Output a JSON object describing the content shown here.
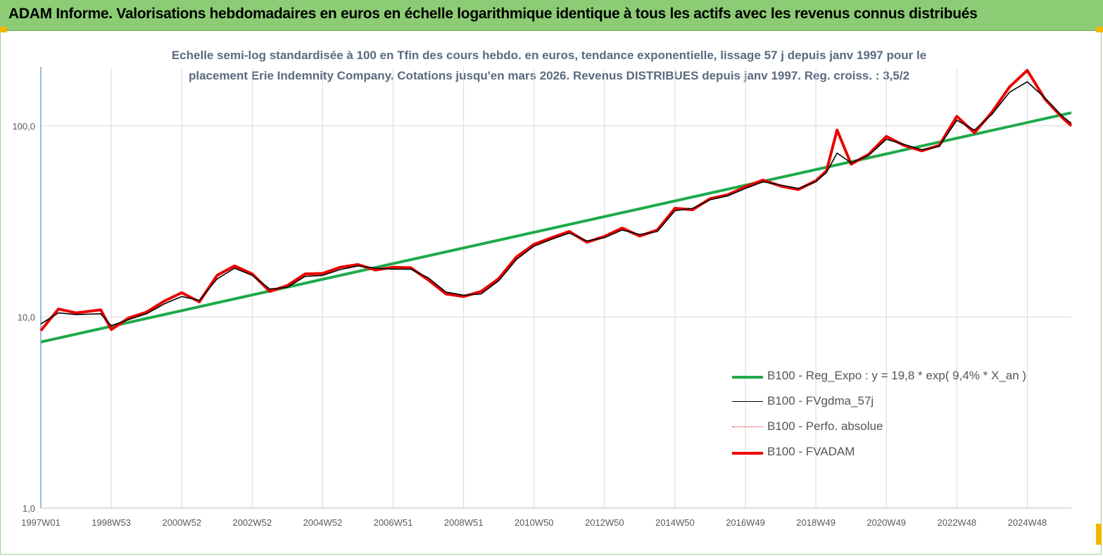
{
  "banner": {
    "title": "ADAM Informe. Valorisations hebdomadaires en euros en échelle logarithmique identique à tous les actifs avec les revenus connus distribués"
  },
  "chart_data": {
    "type": "line",
    "title_line1": "Echelle semi-log standardisée à 100 en Tfin des cours hebdo. en euros, tendance exponentielle, lissage 57 j depuis janv 1997 pour le",
    "title_line2": "placement Erie Indemnity Company. Cotations jusqu'en mars 2026. Revenus DISTRIBUES depuis janv 1997. Reg. croiss. : 3,5/2",
    "y_scale": "log",
    "ylim": [
      1,
      200
    ],
    "y_ticks": [
      {
        "v": 1,
        "label": "1,0"
      },
      {
        "v": 10,
        "label": "10,0"
      },
      {
        "v": 100,
        "label": "100,0"
      }
    ],
    "xlim": [
      1997.0,
      2026.25
    ],
    "x_ticks": [
      {
        "t": 1997.0,
        "label": "1997W01"
      },
      {
        "t": 1999.0,
        "label": "1998W53"
      },
      {
        "t": 2001.0,
        "label": "2000W52"
      },
      {
        "t": 2003.0,
        "label": "2002W52"
      },
      {
        "t": 2005.0,
        "label": "2004W52"
      },
      {
        "t": 2007.0,
        "label": "2006W51"
      },
      {
        "t": 2009.0,
        "label": "2008W51"
      },
      {
        "t": 2011.0,
        "label": "2010W50"
      },
      {
        "t": 2013.0,
        "label": "2012W50"
      },
      {
        "t": 2015.0,
        "label": "2014W50"
      },
      {
        "t": 2017.0,
        "label": "2016W49"
      },
      {
        "t": 2019.0,
        "label": "2018W49"
      },
      {
        "t": 2021.0,
        "label": "2020W49"
      },
      {
        "t": 2023.0,
        "label": "2022W48"
      },
      {
        "t": 2025.0,
        "label": "2024W48"
      }
    ],
    "legend_position": "right",
    "series": [
      {
        "name": "B100 - Reg_Expo : y = 19,8 *  exp( 9,4% *   X_an )",
        "color": "#1faa4a",
        "style": "thick",
        "x": [
          1997.0,
          2026.25
        ],
        "y": [
          7.4,
          117
        ]
      },
      {
        "name": "B100 - FVgdma_57j",
        "color": "#000000",
        "style": "thin",
        "x": [
          1997.0,
          1997.5,
          1998.0,
          1998.7,
          1999.0,
          1999.5,
          2000.0,
          2000.5,
          2001.0,
          2001.5,
          2002.0,
          2002.5,
          2003.0,
          2003.5,
          2004.0,
          2004.5,
          2005.0,
          2005.5,
          2006.0,
          2006.5,
          2007.0,
          2007.5,
          2008.0,
          2008.5,
          2009.0,
          2009.5,
          2010.0,
          2010.5,
          2011.0,
          2011.5,
          2012.0,
          2012.5,
          2013.0,
          2013.5,
          2014.0,
          2014.5,
          2015.0,
          2015.5,
          2016.0,
          2016.5,
          2017.0,
          2017.5,
          2018.0,
          2018.5,
          2019.0,
          2019.3,
          2019.6,
          2020.0,
          2020.5,
          2021.0,
          2021.5,
          2022.0,
          2022.5,
          2023.0,
          2023.5,
          2024.0,
          2024.5,
          2025.0,
          2025.5,
          2026.0,
          2026.25
        ],
        "y": [
          9.2,
          10.5,
          10.3,
          10.4,
          9.0,
          9.7,
          10.4,
          11.7,
          12.8,
          12.2,
          15.8,
          18.0,
          16.5,
          14.0,
          14.3,
          16.3,
          16.5,
          17.7,
          18.5,
          18.0,
          17.8,
          17.8,
          16.0,
          13.5,
          13.0,
          13.2,
          15.5,
          20.0,
          23.5,
          25.5,
          27.5,
          25.0,
          26.0,
          28.5,
          27.0,
          28.0,
          36.0,
          37.0,
          41.0,
          43.0,
          47.0,
          51.0,
          49.0,
          47.0,
          51.0,
          57.0,
          72.0,
          64.0,
          70.0,
          85.0,
          80.0,
          75.0,
          78.0,
          107.0,
          95.0,
          115.0,
          150.0,
          170.0,
          140.0,
          112.0,
          103.0
        ]
      },
      {
        "name": "B100 - Perfo. absolue",
        "color": "#d80000",
        "style": "dotted",
        "x": [
          1997.0,
          1997.5,
          1998.0,
          1998.7,
          1999.0,
          1999.5,
          2000.0,
          2000.5,
          2001.0,
          2001.5,
          2002.0,
          2002.5,
          2003.0,
          2003.5,
          2004.0,
          2004.5,
          2005.0,
          2005.5,
          2006.0,
          2006.5,
          2007.0,
          2007.5,
          2008.0,
          2008.5,
          2009.0,
          2009.5,
          2010.0,
          2010.5,
          2011.0,
          2011.5,
          2012.0,
          2012.5,
          2013.0,
          2013.5,
          2014.0,
          2014.5,
          2015.0,
          2015.5,
          2016.0,
          2016.5,
          2017.0,
          2017.5,
          2018.0,
          2018.5,
          2019.0,
          2019.3,
          2019.6,
          2020.0,
          2020.5,
          2021.0,
          2021.5,
          2022.0,
          2022.5,
          2023.0,
          2023.5,
          2024.0,
          2024.5,
          2025.0,
          2025.5,
          2026.0,
          2026.25
        ],
        "y": [
          8.5,
          11.0,
          10.5,
          10.9,
          8.6,
          9.9,
          10.6,
          12.1,
          13.4,
          12.0,
          16.5,
          18.5,
          16.8,
          13.6,
          14.6,
          16.8,
          16.9,
          18.2,
          18.8,
          17.6,
          18.2,
          18.1,
          15.6,
          13.2,
          12.8,
          13.6,
          15.9,
          20.6,
          24.0,
          26.0,
          28.0,
          24.6,
          26.4,
          29.2,
          26.5,
          28.5,
          37.0,
          36.4,
          41.6,
          43.6,
          48.0,
          52.0,
          48.4,
          46.4,
          51.6,
          58.0,
          95.0,
          63.0,
          71.0,
          88.0,
          79.0,
          74.0,
          79.0,
          112.0,
          92.0,
          118.0,
          160.0,
          195.0,
          138.0,
          110.0,
          100.0
        ]
      },
      {
        "name": "B100 - FVADAM",
        "color": "#ee0000",
        "style": "thick",
        "x": [
          1997.0,
          1997.5,
          1998.0,
          1998.7,
          1999.0,
          1999.5,
          2000.0,
          2000.5,
          2001.0,
          2001.5,
          2002.0,
          2002.5,
          2003.0,
          2003.5,
          2004.0,
          2004.5,
          2005.0,
          2005.5,
          2006.0,
          2006.5,
          2007.0,
          2007.5,
          2008.0,
          2008.5,
          2009.0,
          2009.5,
          2010.0,
          2010.5,
          2011.0,
          2011.5,
          2012.0,
          2012.5,
          2013.0,
          2013.5,
          2014.0,
          2014.5,
          2015.0,
          2015.5,
          2016.0,
          2016.5,
          2017.0,
          2017.5,
          2018.0,
          2018.5,
          2019.0,
          2019.3,
          2019.6,
          2020.0,
          2020.5,
          2021.0,
          2021.5,
          2022.0,
          2022.5,
          2023.0,
          2023.5,
          2024.0,
          2024.5,
          2025.0,
          2025.5,
          2026.0,
          2026.25
        ],
        "y": [
          8.5,
          11.0,
          10.5,
          10.9,
          8.6,
          9.9,
          10.6,
          12.1,
          13.4,
          12.0,
          16.5,
          18.5,
          16.8,
          13.6,
          14.6,
          16.8,
          16.9,
          18.2,
          18.8,
          17.6,
          18.2,
          18.1,
          15.6,
          13.2,
          12.8,
          13.6,
          15.9,
          20.6,
          24.0,
          26.0,
          28.0,
          24.6,
          26.4,
          29.2,
          26.5,
          28.5,
          37.0,
          36.4,
          41.6,
          43.6,
          48.0,
          52.0,
          48.4,
          46.4,
          51.6,
          58.0,
          95.0,
          63.0,
          71.0,
          88.0,
          79.0,
          74.0,
          79.0,
          112.0,
          92.0,
          118.0,
          160.0,
          195.0,
          138.0,
          110.0,
          100.0
        ]
      }
    ]
  }
}
